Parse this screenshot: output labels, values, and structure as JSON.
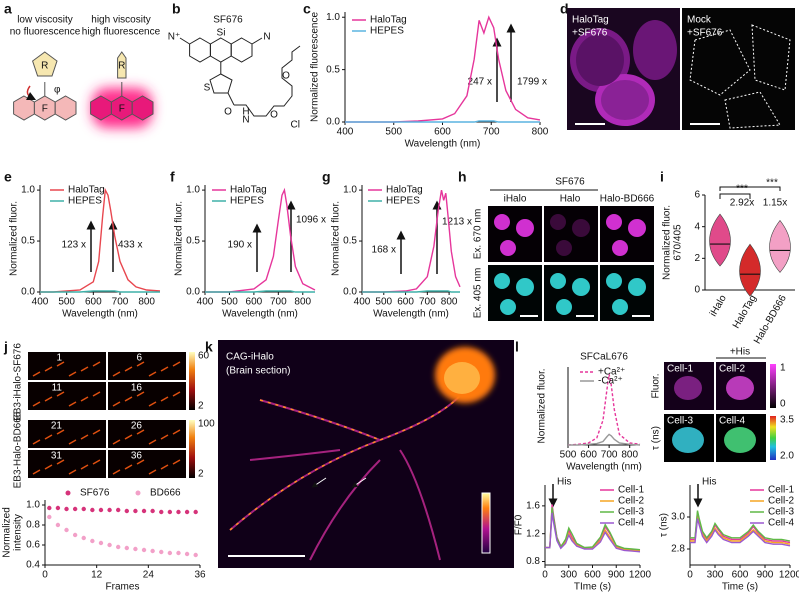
{
  "panels": {
    "a": {
      "letter": "a",
      "low": [
        "low viscosity",
        "no fluorescence"
      ],
      "high": [
        "high viscosity",
        "high fluorescence"
      ],
      "r_left": "R",
      "r_right": "R",
      "phi": "φ",
      "f_left": "F",
      "f_right": "F"
    },
    "b": {
      "letter": "b",
      "name": "SF676",
      "atoms": [
        "N⁺",
        "Si",
        "N",
        "S",
        "O",
        "H",
        "N",
        "O",
        "O",
        "Cl"
      ]
    },
    "c": {
      "letter": "c"
    },
    "d": {
      "letter": "d",
      "left": [
        "HaloTag",
        "+SF676"
      ],
      "right": [
        "Mock",
        "+SF676"
      ]
    },
    "e": {
      "letter": "e"
    },
    "f": {
      "letter": "f"
    },
    "g": {
      "letter": "g"
    },
    "h": {
      "letter": "h",
      "title": "SF676",
      "columns": [
        "iHalo",
        "Halo",
        "Halo-BD666"
      ],
      "rows": [
        "Ex. 670 nm",
        "Ex. 405 nm"
      ]
    },
    "i": {
      "letter": "i"
    },
    "j": {
      "letter": "j",
      "rows": [
        "EB3-iHalo-SF676",
        "EB3-Halo-BD666"
      ],
      "frames": [
        "1",
        "6",
        "11",
        "16",
        "21",
        "26",
        "31",
        "36"
      ],
      "scale1": [
        "60",
        "2"
      ],
      "scale2": [
        "100",
        "2"
      ]
    },
    "k": {
      "letter": "k",
      "label": [
        "CAG-iHalo",
        "(Brain section)"
      ]
    },
    "l": {
      "letter": "l",
      "his": "+His",
      "fluor": "Fluor.",
      "tau": "τ (ns)",
      "cells": [
        "Cell-1",
        "Cell-2",
        "Cell-3",
        "Cell-4"
      ],
      "scale1": [
        "1",
        "0"
      ],
      "scale2": [
        "3.5",
        "2.0"
      ]
    }
  },
  "chart_data": [
    {
      "type": "line",
      "xlabel": "Wavelength (nm)",
      "ylabel": [
        "Normalized fluorescence"
      ],
      "xlim": [
        400,
        800
      ],
      "xticks": [
        400,
        500,
        600,
        700,
        800
      ],
      "ylim": [
        0,
        1.05
      ],
      "yticks": [
        {
          "value": 0,
          "label": "0.0"
        },
        0.5,
        {
          "value": 1,
          "label": "1.0"
        }
      ],
      "x": [
        400,
        450,
        500,
        550,
        600,
        625,
        650,
        665,
        675,
        685,
        695,
        705,
        715,
        730,
        750,
        775,
        800
      ],
      "series": [
        {
          "name": "HaloTag",
          "color": "#e6369b",
          "values": [
            0,
            0,
            0,
            0.01,
            0.03,
            0.08,
            0.25,
            0.6,
            0.97,
            0.85,
            1.0,
            0.9,
            0.6,
            0.3,
            0.12,
            0.04,
            0.02
          ]
        },
        {
          "name": "HEPES",
          "color": "#5ab4e0",
          "values": [
            0,
            0,
            0,
            0,
            0,
            0,
            0,
            0,
            0.01,
            0.01,
            0.01,
            0.01,
            0,
            0,
            0,
            0,
            0
          ]
        }
      ],
      "annotations": [
        "247 x",
        "1799 x"
      ]
    },
    {
      "type": "line",
      "xlabel": "Wavelength (nm)",
      "ylabel": [
        "Normalized fluor."
      ],
      "xlim": [
        400,
        850
      ],
      "xticks": [
        400,
        500,
        600,
        700,
        800
      ],
      "ylim": [
        0,
        1.05
      ],
      "yticks": [
        {
          "value": 0,
          "label": "0.0"
        },
        0.5,
        {
          "value": 1,
          "label": "1.0"
        }
      ],
      "x": [
        400,
        450,
        500,
        550,
        600,
        620,
        635,
        645,
        655,
        665,
        680,
        700,
        730,
        760,
        800,
        850
      ],
      "series": [
        {
          "name": "HaloTag",
          "color": "#e8474f",
          "values": [
            0,
            0,
            0.01,
            0.02,
            0.1,
            0.3,
            0.75,
            1.0,
            0.95,
            0.8,
            0.55,
            0.3,
            0.12,
            0.05,
            0.02,
            0.01
          ]
        },
        {
          "name": "HEPES",
          "color": "#3fb0a8",
          "values": [
            0,
            0,
            0,
            0,
            0.01,
            0.01,
            0.01,
            0.01,
            0.01,
            0.01,
            0.01,
            0,
            0,
            0,
            0,
            0
          ]
        }
      ],
      "annotations": [
        "123 x",
        "433 x"
      ]
    },
    {
      "type": "line",
      "xlabel": "Wavelength (nm)",
      "ylabel": [
        "Normalized fluor."
      ],
      "xlim": [
        400,
        850
      ],
      "xticks": [
        400,
        500,
        600,
        700,
        800
      ],
      "ylim": [
        0,
        1.05
      ],
      "yticks": [
        {
          "value": 0,
          "label": "0.0"
        },
        0.5,
        {
          "value": 1,
          "label": "1.0"
        }
      ],
      "x": [
        400,
        500,
        600,
        650,
        680,
        700,
        715,
        725,
        735,
        750,
        770,
        800,
        850
      ],
      "series": [
        {
          "name": "HaloTag",
          "color": "#e6369b",
          "values": [
            0,
            0,
            0.03,
            0.12,
            0.35,
            0.7,
            0.95,
            1.0,
            0.85,
            0.55,
            0.25,
            0.08,
            0.02
          ]
        },
        {
          "name": "HEPES",
          "color": "#3fb0a8",
          "values": [
            0,
            0,
            0,
            0.01,
            0.01,
            0.01,
            0.01,
            0.01,
            0.01,
            0.01,
            0,
            0,
            0
          ]
        }
      ],
      "annotations": [
        "190 x",
        "1096 x"
      ]
    },
    {
      "type": "line",
      "xlabel": "Wavelength (nm)",
      "ylabel": [
        "Normalized fluor."
      ],
      "xlim": [
        400,
        850
      ],
      "xticks": [
        400,
        500,
        600,
        700,
        800
      ],
      "ylim": [
        0,
        1.05
      ],
      "yticks": [
        {
          "value": 0,
          "label": "0.0"
        },
        0.5,
        {
          "value": 1,
          "label": "1.0"
        }
      ],
      "x": [
        400,
        500,
        600,
        650,
        700,
        730,
        750,
        765,
        775,
        785,
        795,
        810,
        830,
        850
      ],
      "series": [
        {
          "name": "HaloTag",
          "color": "#e6369b",
          "values": [
            0,
            0,
            0.01,
            0.03,
            0.15,
            0.45,
            0.8,
            1.0,
            0.9,
            0.97,
            0.75,
            0.4,
            0.15,
            0.05
          ]
        },
        {
          "name": "HEPES",
          "color": "#3fb0a8",
          "values": [
            0,
            0,
            0,
            0,
            0.01,
            0.01,
            0.01,
            0.01,
            0.01,
            0.01,
            0.01,
            0,
            0,
            0
          ]
        }
      ],
      "annotations": [
        "168 x",
        "1213 x"
      ]
    },
    {
      "type": "violin",
      "ylabel": [
        "Normalized fluor.",
        "670/405"
      ],
      "categories": [
        "iHalo",
        "HaloTag",
        "Halo-BD666"
      ],
      "values": [
        2.9,
        1.0,
        2.5
      ],
      "colors": [
        "#e04a8a",
        "#d42a2a",
        "#f3a0c5"
      ],
      "ylim": [
        0,
        6
      ],
      "yticks": [
        0,
        2,
        4,
        6
      ],
      "annotations": [
        "***",
        "***",
        "2.92x",
        "1.15x"
      ]
    },
    {
      "type": "scatter",
      "xlabel": "Frames",
      "ylabel": [
        "Normalized",
        "intensity"
      ],
      "xlim": [
        0,
        36
      ],
      "xticks": [
        0,
        12,
        24,
        36
      ],
      "ylim": [
        0.4,
        1.05
      ],
      "yticks": [
        0.4,
        0.6,
        0.8,
        {
          "value": 1,
          "label": "1.0"
        }
      ],
      "legend": "horizontal",
      "x": [
        1,
        3,
        5,
        7,
        9,
        11,
        13,
        15,
        17,
        19,
        21,
        23,
        25,
        27,
        29,
        31,
        33,
        35
      ],
      "series": [
        {
          "name": "SF676",
          "color": "#d6337a",
          "values": [
            0.97,
            0.97,
            0.96,
            0.96,
            0.96,
            0.95,
            0.95,
            0.95,
            0.95,
            0.94,
            0.94,
            0.94,
            0.94,
            0.93,
            0.93,
            0.93,
            0.93,
            0.93
          ]
        },
        {
          "name": "BD666",
          "color": "#f2a0c8",
          "values": [
            0.88,
            0.8,
            0.75,
            0.7,
            0.67,
            0.64,
            0.62,
            0.6,
            0.58,
            0.57,
            0.56,
            0.55,
            0.54,
            0.53,
            0.52,
            0.52,
            0.51,
            0.5
          ]
        }
      ]
    },
    {
      "type": "line",
      "title": "SFCaL676",
      "xlabel": "Wavelength (nm)",
      "ylabel": [
        "Normalized fluor."
      ],
      "xlim": [
        500,
        850
      ],
      "xticks": [
        500,
        600,
        700,
        800
      ],
      "ylim": [
        0,
        1.1
      ],
      "yticks": [],
      "x": [
        500,
        550,
        600,
        640,
        670,
        690,
        700,
        710,
        725,
        750,
        800,
        850
      ],
      "series": [
        {
          "name": "+Ca²⁺",
          "color": "#e6369b",
          "dash": true,
          "values": [
            0,
            0.01,
            0.03,
            0.1,
            0.35,
            0.8,
            1.0,
            0.85,
            0.5,
            0.15,
            0.03,
            0.01
          ]
        },
        {
          "name": "-Ca²⁺",
          "color": "#999999",
          "values": [
            0,
            0,
            0.01,
            0.02,
            0.05,
            0.12,
            0.15,
            0.13,
            0.08,
            0.03,
            0.01,
            0
          ]
        }
      ]
    },
    {
      "type": "line",
      "xlabel": "TIme (s)",
      "ylabel": [
        "F/F0"
      ],
      "xlim": [
        0,
        1200
      ],
      "xticks": [
        0,
        300,
        600,
        900,
        1200
      ],
      "ylim": [
        0.75,
        1.9
      ],
      "yticks": [
        0.8,
        1.2,
        1.6
      ],
      "x": [
        0,
        60,
        90,
        110,
        150,
        200,
        260,
        300,
        340,
        400,
        500,
        600,
        700,
        760,
        820,
        900,
        1000,
        1100,
        1200
      ],
      "series": [
        {
          "name": "Cell-1",
          "color": "#e6369b",
          "values": [
            1.0,
            1.0,
            1.62,
            1.45,
            1.15,
            1.02,
            1.1,
            1.25,
            1.15,
            1.05,
            1.0,
            1.0,
            1.12,
            1.3,
            1.2,
            1.02,
            0.98,
            0.97,
            0.96
          ]
        },
        {
          "name": "Cell-2",
          "color": "#f5a623",
          "values": [
            1.0,
            1.0,
            1.55,
            1.4,
            1.12,
            1.0,
            1.08,
            1.2,
            1.12,
            1.03,
            0.99,
            0.99,
            1.1,
            1.25,
            1.15,
            1.0,
            0.97,
            0.96,
            0.95
          ]
        },
        {
          "name": "Cell-3",
          "color": "#5fb946",
          "values": [
            1.0,
            1.0,
            1.58,
            1.42,
            1.14,
            1.01,
            1.12,
            1.28,
            1.2,
            1.06,
            1.0,
            1.01,
            1.15,
            1.33,
            1.22,
            1.03,
            0.99,
            0.98,
            0.97
          ]
        },
        {
          "name": "Cell-4",
          "color": "#9b59d0",
          "values": [
            1.0,
            1.0,
            1.5,
            1.35,
            1.1,
            0.99,
            1.06,
            1.18,
            1.1,
            1.02,
            0.98,
            0.98,
            1.08,
            1.22,
            1.12,
            0.99,
            0.96,
            0.95,
            0.94
          ]
        }
      ],
      "annotations": [
        "His"
      ]
    },
    {
      "type": "line",
      "xlabel": "Time (s)",
      "ylabel": [
        "τ (ns)"
      ],
      "xlim": [
        0,
        1200
      ],
      "xticks": [
        0,
        300,
        600,
        900,
        1200
      ],
      "ylim": [
        2.7,
        3.2
      ],
      "yticks": [
        2.8,
        {
          "value": 3,
          "label": "3.0"
        }
      ],
      "x": [
        0,
        60,
        90,
        110,
        150,
        200,
        260,
        300,
        340,
        400,
        500,
        600,
        700,
        760,
        820,
        900,
        1000,
        1100,
        1200
      ],
      "series": [
        {
          "name": "Cell-1",
          "color": "#e6369b",
          "values": [
            2.86,
            2.86,
            3.03,
            2.98,
            2.9,
            2.86,
            2.9,
            2.95,
            2.92,
            2.88,
            2.86,
            2.86,
            2.9,
            2.94,
            2.9,
            2.86,
            2.85,
            2.85,
            2.84
          ]
        },
        {
          "name": "Cell-2",
          "color": "#f5a623",
          "values": [
            2.85,
            2.85,
            3.0,
            2.96,
            2.89,
            2.85,
            2.89,
            2.93,
            2.9,
            2.87,
            2.85,
            2.85,
            2.89,
            2.92,
            2.89,
            2.85,
            2.84,
            2.84,
            2.83
          ]
        },
        {
          "name": "Cell-3",
          "color": "#5fb946",
          "values": [
            2.87,
            2.87,
            3.04,
            2.99,
            2.91,
            2.87,
            2.91,
            2.96,
            2.93,
            2.89,
            2.87,
            2.87,
            2.91,
            2.95,
            2.91,
            2.87,
            2.86,
            2.86,
            2.85
          ]
        },
        {
          "name": "Cell-4",
          "color": "#9b59d0",
          "values": [
            2.84,
            2.84,
            2.99,
            2.95,
            2.88,
            2.84,
            2.88,
            2.92,
            2.89,
            2.86,
            2.84,
            2.84,
            2.88,
            2.91,
            2.88,
            2.84,
            2.83,
            2.83,
            2.82
          ]
        }
      ],
      "annotations": [
        "His"
      ]
    }
  ]
}
